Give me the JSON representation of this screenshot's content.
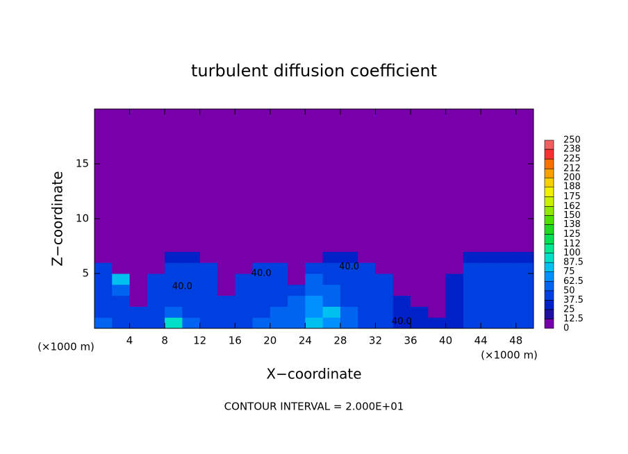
{
  "chart_data": {
    "type": "heatmap",
    "title": "turbulent diffusion coefficient",
    "x_label": "X−coordinate",
    "y_label": "Z−coordinate",
    "x_unit": "(×1000 m)",
    "y_unit": "(×1000 m)",
    "footer": "CONTOUR INTERVAL = 2.000E+01",
    "xlim": [
      0,
      50
    ],
    "ylim": [
      0,
      20
    ],
    "xticks": [
      4,
      8,
      12,
      16,
      20,
      24,
      28,
      32,
      36,
      40,
      44,
      48
    ],
    "yticks": [
      5,
      10,
      15
    ],
    "xbins": [
      0,
      2,
      4,
      6,
      8,
      10,
      12,
      14,
      16,
      18,
      20,
      22,
      24,
      26,
      28,
      30,
      32,
      34,
      36,
      38,
      40,
      42,
      44,
      46,
      48,
      50
    ],
    "ybins": [
      0,
      1,
      2,
      3,
      4,
      5,
      6,
      7,
      8,
      9,
      10,
      11,
      12,
      13,
      14,
      15,
      16,
      17,
      18,
      19,
      20
    ],
    "z": [
      [
        50,
        45,
        40,
        45,
        90,
        50,
        45,
        40,
        45,
        50,
        55,
        60,
        75,
        70,
        55,
        45,
        40,
        35,
        30,
        30,
        35,
        40,
        40,
        40,
        45
      ],
      [
        45,
        45,
        40,
        40,
        50,
        45,
        45,
        40,
        40,
        45,
        50,
        55,
        70,
        75,
        50,
        45,
        40,
        35,
        30,
        0,
        35,
        40,
        40,
        40,
        40
      ],
      [
        40,
        45,
        0,
        40,
        45,
        40,
        40,
        40,
        40,
        45,
        45,
        50,
        65,
        60,
        45,
        40,
        40,
        35,
        0,
        0,
        35,
        40,
        40,
        40,
        40
      ],
      [
        40,
        50,
        0,
        40,
        40,
        40,
        40,
        0,
        40,
        40,
        45,
        45,
        60,
        50,
        45,
        40,
        40,
        0,
        0,
        0,
        35,
        40,
        40,
        40,
        40
      ],
      [
        45,
        75,
        0,
        40,
        40,
        40,
        40,
        0,
        40,
        40,
        40,
        0,
        55,
        45,
        45,
        40,
        40,
        0,
        0,
        0,
        35,
        40,
        40,
        40,
        40
      ],
      [
        40,
        0,
        0,
        0,
        40,
        40,
        40,
        0,
        0,
        40,
        40,
        0,
        45,
        45,
        40,
        40,
        0,
        0,
        0,
        0,
        0,
        40,
        40,
        40,
        40
      ],
      [
        0,
        0,
        0,
        0,
        35,
        35,
        0,
        0,
        0,
        0,
        0,
        0,
        0,
        35,
        35,
        0,
        0,
        0,
        0,
        0,
        0,
        35,
        35,
        35,
        35
      ],
      [
        0,
        0,
        0,
        0,
        0,
        0,
        0,
        0,
        0,
        0,
        0,
        0,
        0,
        0,
        0,
        0,
        0,
        0,
        0,
        0,
        0,
        0,
        0,
        0,
        0
      ],
      [
        0,
        0,
        0,
        0,
        0,
        0,
        0,
        0,
        0,
        0,
        0,
        0,
        0,
        0,
        0,
        0,
        0,
        0,
        0,
        0,
        0,
        0,
        0,
        0,
        0
      ],
      [
        0,
        0,
        0,
        0,
        0,
        0,
        0,
        0,
        0,
        0,
        0,
        0,
        0,
        0,
        0,
        0,
        0,
        0,
        0,
        0,
        0,
        0,
        0,
        0,
        0
      ],
      [
        0,
        0,
        0,
        0,
        0,
        0,
        0,
        0,
        0,
        0,
        0,
        0,
        0,
        0,
        0,
        0,
        0,
        0,
        0,
        0,
        0,
        0,
        0,
        0,
        0
      ],
      [
        0,
        0,
        0,
        0,
        0,
        0,
        0,
        0,
        0,
        0,
        0,
        0,
        0,
        0,
        0,
        0,
        0,
        0,
        0,
        0,
        0,
        0,
        0,
        0,
        0
      ],
      [
        0,
        0,
        0,
        0,
        0,
        0,
        0,
        0,
        0,
        0,
        0,
        0,
        0,
        0,
        0,
        0,
        0,
        0,
        0,
        0,
        0,
        0,
        0,
        0,
        0
      ],
      [
        0,
        0,
        0,
        0,
        0,
        0,
        0,
        0,
        0,
        0,
        0,
        0,
        0,
        0,
        0,
        0,
        0,
        0,
        0,
        0,
        0,
        0,
        0,
        0,
        0
      ],
      [
        0,
        0,
        0,
        0,
        0,
        0,
        0,
        0,
        0,
        0,
        0,
        0,
        0,
        0,
        0,
        0,
        0,
        0,
        0,
        0,
        0,
        0,
        0,
        0,
        0
      ],
      [
        0,
        0,
        0,
        0,
        0,
        0,
        0,
        0,
        0,
        0,
        0,
        0,
        0,
        0,
        0,
        0,
        0,
        0,
        0,
        0,
        0,
        0,
        0,
        0,
        0
      ],
      [
        0,
        0,
        0,
        0,
        0,
        0,
        0,
        0,
        0,
        0,
        0,
        0,
        0,
        0,
        0,
        0,
        0,
        0,
        0,
        0,
        0,
        0,
        0,
        0,
        0
      ],
      [
        0,
        0,
        0,
        0,
        0,
        0,
        0,
        0,
        0,
        0,
        0,
        0,
        0,
        0,
        0,
        0,
        0,
        0,
        0,
        0,
        0,
        0,
        0,
        0,
        0
      ],
      [
        0,
        0,
        0,
        0,
        0,
        0,
        0,
        0,
        0,
        0,
        0,
        0,
        0,
        0,
        0,
        0,
        0,
        0,
        0,
        0,
        0,
        0,
        0,
        0,
        0
      ],
      [
        0,
        0,
        0,
        0,
        0,
        0,
        0,
        0,
        0,
        0,
        0,
        0,
        0,
        0,
        0,
        0,
        0,
        0,
        0,
        0,
        0,
        0,
        0,
        0,
        0
      ]
    ],
    "levels": [
      0,
      12.5,
      25,
      37.5,
      50,
      62.5,
      75,
      87.5,
      100,
      112,
      125,
      138,
      150,
      162,
      175,
      188,
      200,
      212,
      225,
      238,
      250
    ],
    "colors": [
      "#7800a8",
      "#2010a0",
      "#0020c8",
      "#0040e0",
      "#0064f0",
      "#0090ff",
      "#00c0f0",
      "#00e0c8",
      "#00e890",
      "#00e050",
      "#20d820",
      "#50e000",
      "#90e800",
      "#c8f000",
      "#f0f000",
      "#f8d000",
      "#f8a000",
      "#f87000",
      "#f83030",
      "#f06060"
    ],
    "annotations": [
      {
        "text": "40.0",
        "x": 10,
        "y": 3.8
      },
      {
        "text": "40.0",
        "x": 19,
        "y": 5
      },
      {
        "text": "40.0",
        "x": 29,
        "y": 5.6
      },
      {
        "text": "40.0",
        "x": 35,
        "y": 0.6
      }
    ]
  }
}
